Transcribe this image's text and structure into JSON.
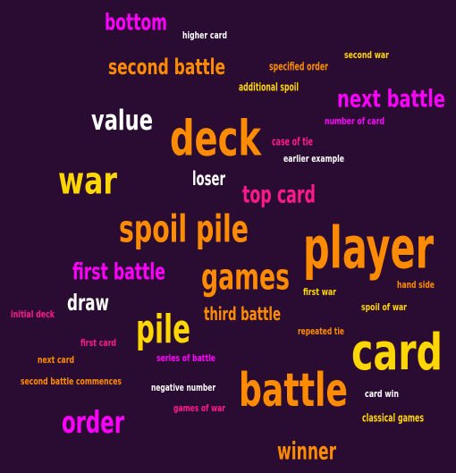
{
  "colors": {
    "background": "#2a0c33",
    "orange": "#ff8c00",
    "yellow": "#ffd700",
    "magenta": "#ff00ff",
    "pink": "#ff1a8c",
    "white": "#ffffff"
  },
  "words": [
    {
      "text": "bottom",
      "color": "#ff00ff"
    },
    {
      "text": "higher card",
      "color": "#ffffff"
    },
    {
      "text": "second battle",
      "color": "#ff8c00"
    },
    {
      "text": "specified order",
      "color": "#ff8c00"
    },
    {
      "text": "second war",
      "color": "#ffd700"
    },
    {
      "text": "additional spoil",
      "color": "#ffd700"
    },
    {
      "text": "next battle",
      "color": "#ff00ff"
    },
    {
      "text": "value",
      "color": "#ffffff"
    },
    {
      "text": "number of card",
      "color": "#ff00ff"
    },
    {
      "text": "deck",
      "color": "#ff8c00"
    },
    {
      "text": "case of tie",
      "color": "#ff1a8c"
    },
    {
      "text": "earlier example",
      "color": "#ffffff"
    },
    {
      "text": "war",
      "color": "#ffd700"
    },
    {
      "text": "loser",
      "color": "#ffffff"
    },
    {
      "text": "top card",
      "color": "#ff1a8c"
    },
    {
      "text": "spoil pile",
      "color": "#ff8c00"
    },
    {
      "text": "player",
      "color": "#ff8c00"
    },
    {
      "text": "first battle",
      "color": "#ff00ff"
    },
    {
      "text": "games",
      "color": "#ff8c00"
    },
    {
      "text": "first war",
      "color": "#ffd700"
    },
    {
      "text": "hand side",
      "color": "#ff8c00"
    },
    {
      "text": "draw",
      "color": "#ffffff"
    },
    {
      "text": "spoil of war",
      "color": "#ffd700"
    },
    {
      "text": "initial deck",
      "color": "#ff1a8c"
    },
    {
      "text": "pile",
      "color": "#ffd700"
    },
    {
      "text": "third battle",
      "color": "#ff8c00"
    },
    {
      "text": "repeated tie",
      "color": "#ff8c00"
    },
    {
      "text": "first card",
      "color": "#ff1a8c"
    },
    {
      "text": "card",
      "color": "#ffd700"
    },
    {
      "text": "next card",
      "color": "#ff8c00"
    },
    {
      "text": "series of battle",
      "color": "#ff00ff"
    },
    {
      "text": "second battle commences",
      "color": "#ff8c00"
    },
    {
      "text": "negative number",
      "color": "#ffffff"
    },
    {
      "text": "battle",
      "color": "#ff8c00"
    },
    {
      "text": "card win",
      "color": "#ffffff"
    },
    {
      "text": "games of war",
      "color": "#ff1a8c"
    },
    {
      "text": "order",
      "color": "#ff00ff"
    },
    {
      "text": "classical games",
      "color": "#ffd700"
    },
    {
      "text": "winner",
      "color": "#ff8c00"
    }
  ]
}
